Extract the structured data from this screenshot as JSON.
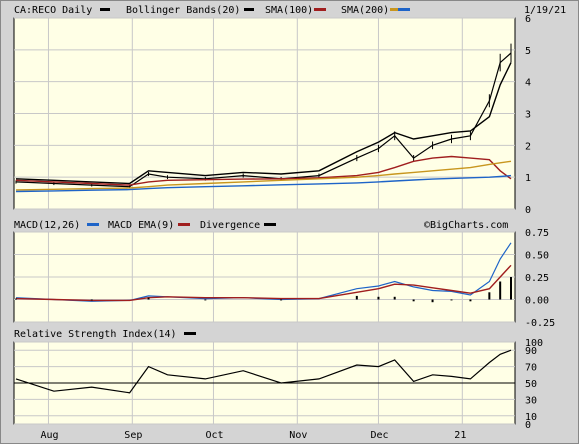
{
  "symbol_title": "CA:RECO Daily",
  "date": "1/19/21",
  "watermark": "©BigCharts.com",
  "colors": {
    "background": "#d4d4d4",
    "plot_bg": "#ffffe6",
    "price": "#000000",
    "bollinger": "#000000",
    "sma100": "#a01e1e",
    "sma200": "#c8961e",
    "sma_blue": "#1e64c8",
    "macd": "#1e64c8",
    "macd_ema": "#a01e1e",
    "divergence": "#000000",
    "rsi": "#000000"
  },
  "legend": {
    "bollinger": "Bollinger Bands(20)",
    "sma100": "SMA(100)",
    "sma200": "SMA(200)"
  },
  "macd_legend": {
    "macd": "MACD(12,26)",
    "ema": "MACD EMA(9)",
    "divergence": "Divergence"
  },
  "rsi_legend": {
    "rsi": "Relative Strength Index(14)"
  },
  "x_months": [
    "Aug",
    "Sep",
    "Oct",
    "Nov",
    "Dec",
    "21"
  ],
  "chart_data": [
    {
      "type": "line",
      "panel": "price",
      "ylim": [
        0,
        6
      ],
      "yticks": [
        "0",
        "1",
        "2",
        "3",
        "4",
        "5",
        "6"
      ],
      "x": [
        "2020-07-20",
        "2020-08-03",
        "2020-08-17",
        "2020-08-31",
        "2020-09-07",
        "2020-09-14",
        "2020-09-28",
        "2020-10-12",
        "2020-10-26",
        "2020-11-09",
        "2020-11-23",
        "2020-12-01",
        "2020-12-07",
        "2020-12-14",
        "2020-12-21",
        "2020-12-28",
        "2021-01-04",
        "2021-01-11",
        "2021-01-15",
        "2021-01-19"
      ],
      "series": [
        {
          "name": "Price",
          "values": [
            0.85,
            0.8,
            0.75,
            0.7,
            1.1,
            1.0,
            0.95,
            1.05,
            0.95,
            1.05,
            1.6,
            1.9,
            2.3,
            1.6,
            2.0,
            2.2,
            2.3,
            3.4,
            4.6,
            4.9
          ]
        },
        {
          "name": "Bollinger Bands(20)",
          "values": [
            0.95,
            0.9,
            0.85,
            0.8,
            1.2,
            1.15,
            1.05,
            1.15,
            1.1,
            1.2,
            1.8,
            2.1,
            2.4,
            2.2,
            2.3,
            2.4,
            2.45,
            2.9,
            3.9,
            4.6
          ]
        },
        {
          "name": "SMA(100)",
          "values": [
            0.9,
            0.85,
            0.8,
            0.75,
            0.85,
            0.9,
            0.92,
            0.94,
            0.95,
            0.98,
            1.05,
            1.15,
            1.3,
            1.5,
            1.6,
            1.65,
            1.6,
            1.55,
            1.2,
            0.95
          ]
        },
        {
          "name": "SMA(200)",
          "values": [
            0.6,
            0.62,
            0.64,
            0.66,
            0.7,
            0.75,
            0.8,
            0.85,
            0.9,
            0.95,
            1.0,
            1.05,
            1.1,
            1.15,
            1.2,
            1.25,
            1.3,
            1.4,
            1.45,
            1.5
          ]
        },
        {
          "name": "SMA blue",
          "values": [
            0.55,
            0.57,
            0.59,
            0.61,
            0.64,
            0.67,
            0.7,
            0.73,
            0.76,
            0.79,
            0.82,
            0.85,
            0.88,
            0.91,
            0.94,
            0.96,
            0.98,
            1.0,
            1.02,
            1.05
          ]
        }
      ]
    },
    {
      "type": "line",
      "panel": "macd",
      "ylim": [
        -0.25,
        0.75
      ],
      "yticks": [
        "-0.25",
        "0.00",
        "0.25",
        "0.50",
        "0.75"
      ],
      "x": [
        "2020-07-20",
        "2020-08-03",
        "2020-08-17",
        "2020-08-31",
        "2020-09-07",
        "2020-09-14",
        "2020-09-28",
        "2020-10-12",
        "2020-10-26",
        "2020-11-09",
        "2020-11-23",
        "2020-12-01",
        "2020-12-07",
        "2020-12-14",
        "2020-12-21",
        "2020-12-28",
        "2021-01-04",
        "2021-01-11",
        "2021-01-15",
        "2021-01-19"
      ],
      "series": [
        {
          "name": "MACD(12,26)",
          "values": [
            0.02,
            0.0,
            -0.02,
            -0.01,
            0.04,
            0.03,
            0.01,
            0.02,
            0.0,
            0.01,
            0.12,
            0.15,
            0.2,
            0.14,
            0.1,
            0.09,
            0.05,
            0.2,
            0.45,
            0.63
          ]
        },
        {
          "name": "MACD EMA(9)",
          "values": [
            0.01,
            0.0,
            -0.01,
            -0.01,
            0.02,
            0.03,
            0.02,
            0.02,
            0.01,
            0.01,
            0.08,
            0.12,
            0.17,
            0.16,
            0.13,
            0.1,
            0.07,
            0.12,
            0.25,
            0.38
          ]
        },
        {
          "name": "Divergence",
          "values": [
            0.01,
            0.0,
            -0.01,
            0.0,
            0.02,
            0.0,
            -0.01,
            0.0,
            -0.01,
            0.0,
            0.04,
            0.03,
            0.03,
            -0.02,
            -0.03,
            -0.01,
            -0.02,
            0.08,
            0.2,
            0.25
          ]
        }
      ]
    },
    {
      "type": "line",
      "panel": "rsi",
      "ylim": [
        0,
        100
      ],
      "yticks": [
        "0",
        "10",
        "30",
        "50",
        "70",
        "90",
        "100"
      ],
      "x": [
        "2020-07-20",
        "2020-08-03",
        "2020-08-17",
        "2020-08-31",
        "2020-09-07",
        "2020-09-14",
        "2020-09-28",
        "2020-10-12",
        "2020-10-26",
        "2020-11-09",
        "2020-11-23",
        "2020-12-01",
        "2020-12-07",
        "2020-12-14",
        "2020-12-21",
        "2020-12-28",
        "2021-01-04",
        "2021-01-11",
        "2021-01-15",
        "2021-01-19"
      ],
      "series": [
        {
          "name": "Relative Strength Index(14)",
          "values": [
            55,
            40,
            45,
            38,
            70,
            60,
            55,
            65,
            50,
            55,
            72,
            70,
            78,
            52,
            60,
            58,
            55,
            75,
            85,
            90
          ]
        }
      ]
    }
  ]
}
